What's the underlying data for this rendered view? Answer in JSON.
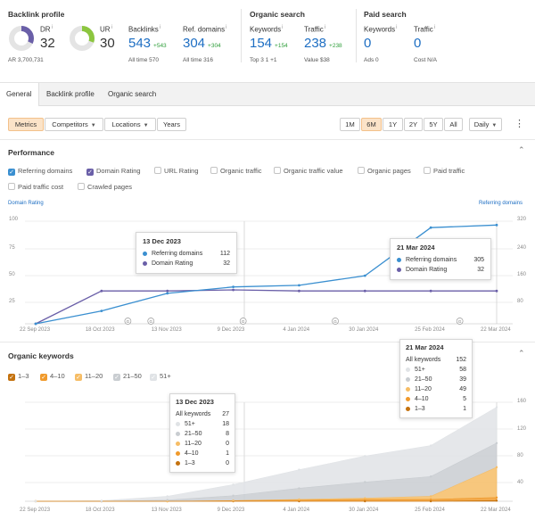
{
  "backlink_profile": {
    "title": "Backlink profile",
    "dr": {
      "label": "DR",
      "value": "32"
    },
    "ar": "AR  3,700,731",
    "ur": {
      "label": "UR",
      "value": "30"
    },
    "backlinks": {
      "label": "Backlinks",
      "value": "543",
      "delta": "+543",
      "sub": "All time  570"
    },
    "ref_domains": {
      "label": "Ref. domains",
      "value": "304",
      "delta": "+304",
      "sub": "All time  316"
    }
  },
  "organic_search": {
    "title": "Organic search",
    "keywords": {
      "label": "Keywords",
      "value": "154",
      "delta": "+154",
      "sub": "Top 3  1  +1"
    },
    "traffic": {
      "label": "Traffic",
      "value": "238",
      "delta": "+238",
      "sub": "Value  $38"
    }
  },
  "paid_search": {
    "title": "Paid search",
    "keywords": {
      "label": "Keywords",
      "value": "0",
      "sub": "Ads  0"
    },
    "traffic": {
      "label": "Traffic",
      "value": "0",
      "sub": "Cost  N/A"
    }
  },
  "tabs": [
    "General",
    "Backlink profile",
    "Organic search"
  ],
  "toolbar": {
    "metrics": "Metrics",
    "competitors": "Competitors",
    "locations": "Locations",
    "years": "Years",
    "ranges": [
      "1M",
      "6M",
      "1Y",
      "2Y",
      "5Y",
      "All"
    ],
    "active_range": "6M",
    "interval": "Daily",
    "more": "⋮"
  },
  "performance": {
    "title": "Performance",
    "checkboxes": [
      {
        "label": "Referring domains",
        "checked": true,
        "color": "#3a8fd0"
      },
      {
        "label": "Domain Rating",
        "checked": true,
        "color": "#6a5fa8"
      },
      {
        "label": "URL Rating",
        "checked": false
      },
      {
        "label": "Organic traffic",
        "checked": false
      },
      {
        "label": "Organic traffic value",
        "checked": false
      },
      {
        "label": "Organic pages",
        "checked": false
      },
      {
        "label": "Paid traffic",
        "checked": false
      },
      {
        "label": "Paid traffic cost",
        "checked": false
      },
      {
        "label": "Crawled pages",
        "checked": false
      }
    ],
    "left_axis_title": "Domain Rating",
    "right_axis_title": "Referring domains",
    "left_ticks": [
      "100",
      "75",
      "50",
      "25"
    ],
    "right_ticks": [
      "320",
      "240",
      "160",
      "80"
    ],
    "x_ticks": [
      "22 Sep 2023",
      "18 Oct 2023",
      "13 Nov 2023",
      "9 Dec 2023",
      "4 Jan 2024",
      "30 Jan 2024",
      "25 Feb 2024",
      "22 Mar 2024"
    ],
    "markers": [
      "G",
      "G",
      "G",
      "G",
      "G"
    ],
    "tooltip1": {
      "title": "13 Dec 2023",
      "rows": [
        {
          "label": "Referring domains",
          "value": "112"
        },
        {
          "label": "Domain Rating",
          "value": "32"
        }
      ]
    },
    "tooltip2": {
      "title": "21 Mar 2024",
      "rows": [
        {
          "label": "Referring domains",
          "value": "305"
        },
        {
          "label": "Domain Rating",
          "value": "32"
        }
      ]
    }
  },
  "organic_keywords": {
    "title": "Organic keywords",
    "filters": [
      {
        "label": "1–3",
        "color": "#c4720f"
      },
      {
        "label": "4–10",
        "color": "#f09a2c"
      },
      {
        "label": "11–20",
        "color": "#f6bd66"
      },
      {
        "label": "21–50",
        "color": "#c9cdd1"
      },
      {
        "label": "51+",
        "color": "#e0e3e6"
      }
    ],
    "right_ticks": [
      "160",
      "120",
      "80",
      "40"
    ],
    "x_ticks": [
      "22 Sep 2023",
      "18 Oct 2023",
      "13 Nov 2023",
      "9 Dec 2023",
      "4 Jan 2024",
      "30 Jan 2024",
      "25 Feb 2024",
      "22 Mar 2024"
    ],
    "tooltip1": {
      "title": "13 Dec 2023",
      "rows": [
        {
          "label": "All keywords",
          "value": "27"
        },
        {
          "label": "51+",
          "value": "18"
        },
        {
          "label": "21–50",
          "value": "8"
        },
        {
          "label": "11–20",
          "value": "0"
        },
        {
          "label": "4–10",
          "value": "1"
        },
        {
          "label": "1–3",
          "value": "0"
        }
      ]
    },
    "tooltip2": {
      "title": "21 Mar 2024",
      "rows": [
        {
          "label": "All keywords",
          "value": "152"
        },
        {
          "label": "51+",
          "value": "58"
        },
        {
          "label": "21–50",
          "value": "39"
        },
        {
          "label": "11–20",
          "value": "49"
        },
        {
          "label": "4–10",
          "value": "5"
        },
        {
          "label": "1–3",
          "value": "1"
        }
      ]
    }
  },
  "colors": {
    "blue": "#1d6ec3",
    "accent_orange": "#f09a2c",
    "ref_domains_line": "#3a8fd0",
    "dr_line": "#6a5fa8"
  },
  "chart_data": [
    {
      "type": "line",
      "title": "Performance",
      "x": [
        "22 Sep 2023",
        "18 Oct 2023",
        "13 Nov 2023",
        "9 Dec 2023",
        "4 Jan 2024",
        "30 Jan 2024",
        "25 Feb 2024",
        "22 Mar 2024"
      ],
      "series": [
        {
          "name": "Domain Rating",
          "axis": "left",
          "values": [
            0,
            32,
            32,
            33,
            32,
            32,
            32,
            32
          ]
        },
        {
          "name": "Referring domains",
          "axis": "right",
          "values": [
            0,
            40,
            95,
            115,
            120,
            150,
            300,
            308
          ]
        }
      ],
      "ylim_left": [
        0,
        100
      ],
      "ylim_right": [
        0,
        320
      ]
    },
    {
      "type": "area",
      "title": "Organic keywords",
      "x": [
        "22 Sep 2023",
        "18 Oct 2023",
        "13 Nov 2023",
        "9 Dec 2023",
        "4 Jan 2024",
        "30 Jan 2024",
        "25 Feb 2024",
        "22 Mar 2024"
      ],
      "series": [
        {
          "name": "1–3",
          "values": [
            0,
            0,
            0,
            0,
            0,
            0,
            0,
            1
          ]
        },
        {
          "name": "4–10",
          "values": [
            0,
            0,
            0,
            1,
            2,
            3,
            3,
            5
          ]
        },
        {
          "name": "11–20",
          "values": [
            0,
            0,
            0,
            0,
            1,
            2,
            5,
            49
          ]
        },
        {
          "name": "21–50",
          "values": [
            0,
            0,
            2,
            8,
            18,
            26,
            32,
            39
          ]
        },
        {
          "name": "51+",
          "values": [
            0,
            1,
            6,
            18,
            30,
            42,
            50,
            58
          ]
        }
      ],
      "ylim": [
        0,
        160
      ]
    }
  ]
}
